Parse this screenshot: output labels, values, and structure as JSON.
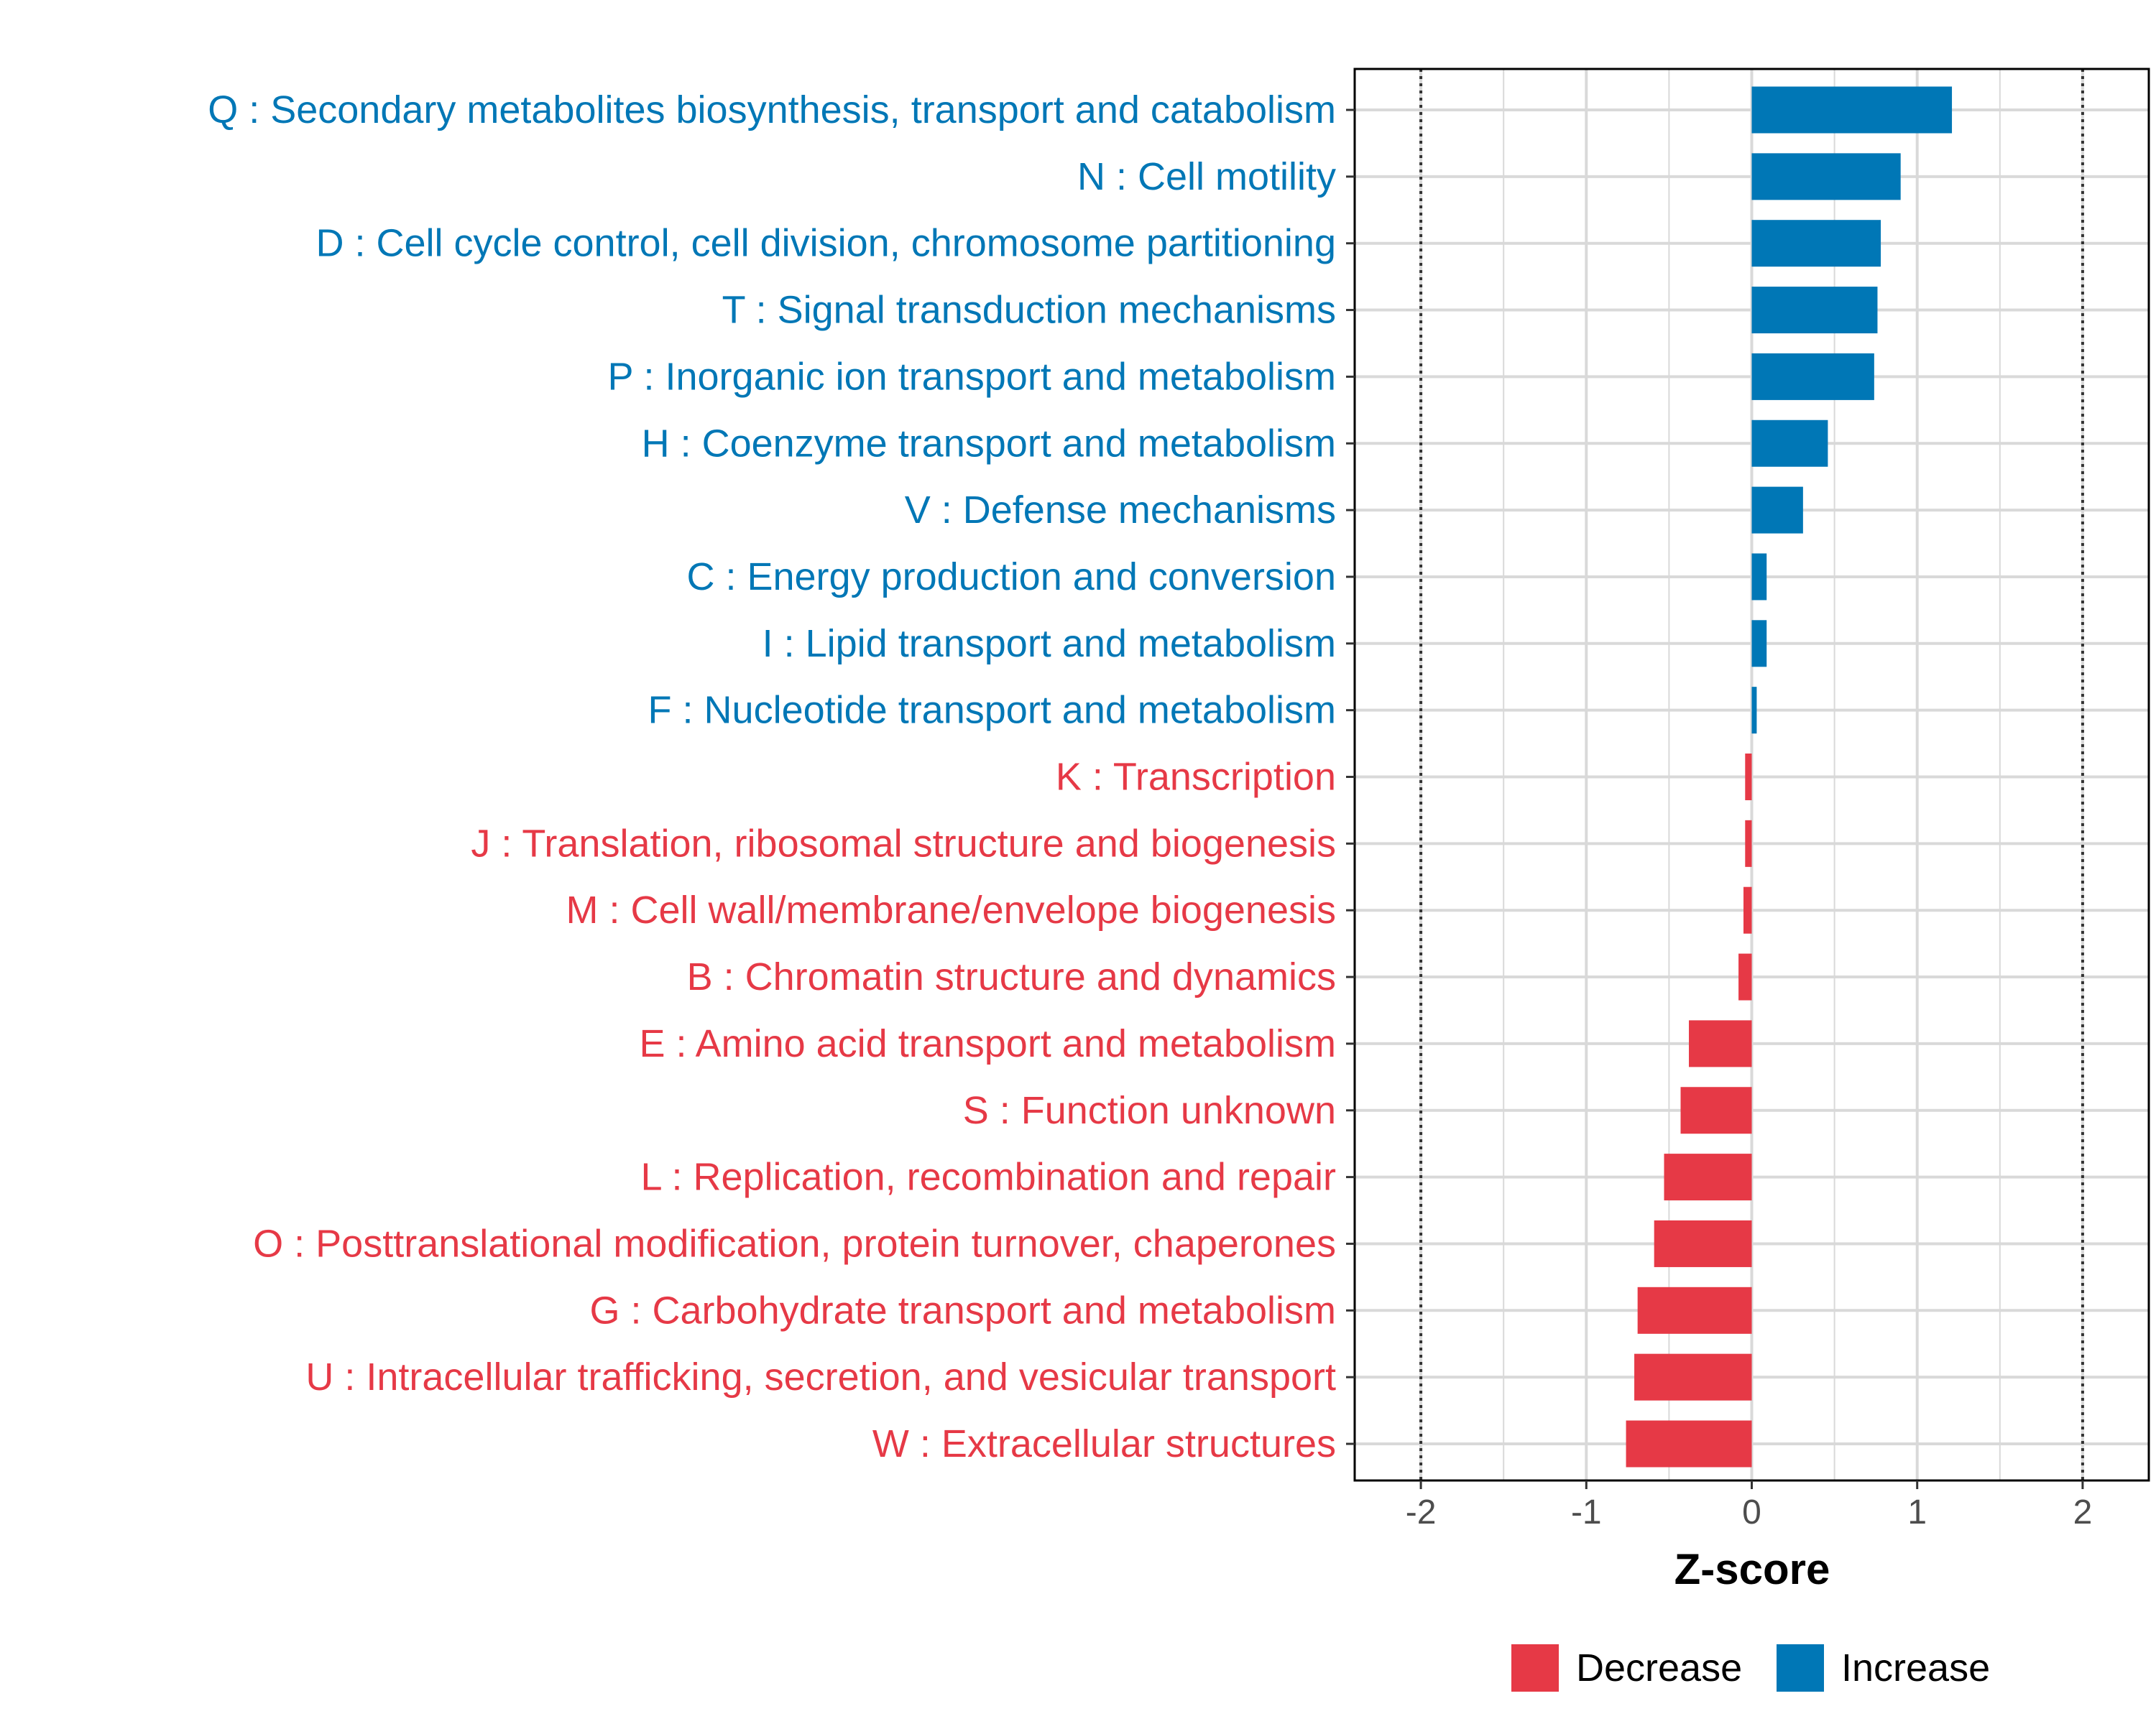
{
  "chart_data": {
    "type": "bar",
    "orientation": "horizontal",
    "xlabel": "Z-score",
    "xlim": [
      -2.4,
      2.4
    ],
    "x_ticks": [
      -2,
      -1,
      0,
      1,
      2
    ],
    "x_tick_labels": [
      "-2",
      "-1",
      "0",
      "1",
      "2"
    ],
    "reference_lines": [
      -2,
      2
    ],
    "grid": true,
    "legend_position": "bottom",
    "colors": {
      "Decrease": "#e63946",
      "Increase": "#0077b6"
    },
    "legend": [
      {
        "name": "Decrease",
        "color": "#e63946"
      },
      {
        "name": "Increase",
        "color": "#0077b6"
      }
    ],
    "categories": [
      {
        "label": "Q : Secondary metabolites biosynthesis, transport and catabolism",
        "value": 1.21,
        "group": "Increase"
      },
      {
        "label": "N : Cell motility",
        "value": 0.9,
        "group": "Increase"
      },
      {
        "label": "D : Cell cycle control, cell division, chromosome partitioning",
        "value": 0.78,
        "group": "Increase"
      },
      {
        "label": "T : Signal transduction mechanisms",
        "value": 0.76,
        "group": "Increase"
      },
      {
        "label": "P : Inorganic ion transport and metabolism",
        "value": 0.74,
        "group": "Increase"
      },
      {
        "label": "H : Coenzyme transport and metabolism",
        "value": 0.46,
        "group": "Increase"
      },
      {
        "label": "V : Defense mechanisms",
        "value": 0.31,
        "group": "Increase"
      },
      {
        "label": "C : Energy production and conversion",
        "value": 0.09,
        "group": "Increase"
      },
      {
        "label": "I : Lipid transport and metabolism",
        "value": 0.09,
        "group": "Increase"
      },
      {
        "label": "F : Nucleotide transport and metabolism",
        "value": 0.03,
        "group": "Increase"
      },
      {
        "label": "K : Transcription",
        "value": -0.04,
        "group": "Decrease"
      },
      {
        "label": "J : Translation, ribosomal structure and biogenesis",
        "value": -0.04,
        "group": "Decrease"
      },
      {
        "label": "M : Cell wall/membrane/envelope biogenesis",
        "value": -0.05,
        "group": "Decrease"
      },
      {
        "label": "B : Chromatin structure and dynamics",
        "value": -0.08,
        "group": "Decrease"
      },
      {
        "label": "E : Amino acid transport and metabolism",
        "value": -0.38,
        "group": "Decrease"
      },
      {
        "label": "S : Function unknown",
        "value": -0.43,
        "group": "Decrease"
      },
      {
        "label": "L : Replication, recombination and repair",
        "value": -0.53,
        "group": "Decrease"
      },
      {
        "label": "O : Posttranslational modification, protein turnover, chaperones",
        "value": -0.59,
        "group": "Decrease"
      },
      {
        "label": "G : Carbohydrate transport and metabolism",
        "value": -0.69,
        "group": "Decrease"
      },
      {
        "label": "U : Intracellular trafficking, secretion, and vesicular transport",
        "value": -0.71,
        "group": "Decrease"
      },
      {
        "label": "W : Extracellular structures",
        "value": -0.76,
        "group": "Decrease"
      }
    ]
  }
}
